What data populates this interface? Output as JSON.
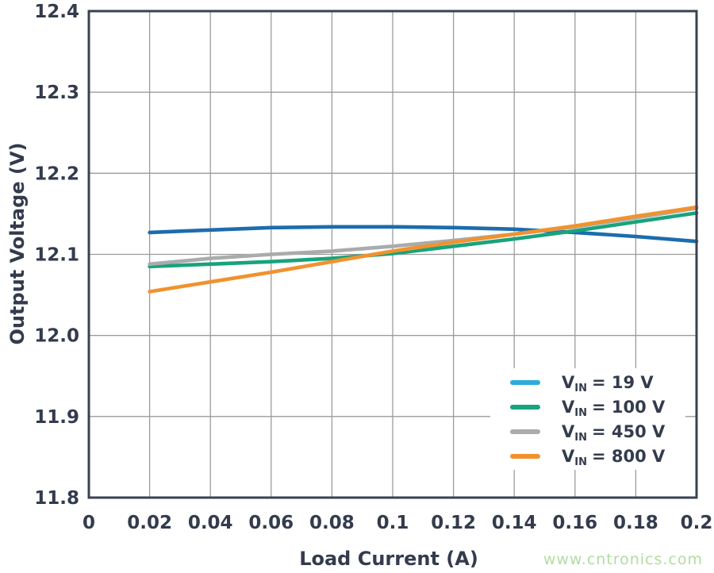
{
  "watermark": {
    "text": "www.cntronics.com"
  },
  "legend": {
    "items": [
      {
        "symbol": "V",
        "subscript": "IN",
        "value": "= 19 V",
        "swatch_color": "#2fabdd"
      },
      {
        "symbol": "V",
        "subscript": "IN",
        "value": "= 100 V",
        "swatch_color": "#18a37c"
      },
      {
        "symbol": "V",
        "subscript": "IN",
        "value": "= 450 V",
        "swatch_color": "#a9abad"
      },
      {
        "symbol": "V",
        "subscript": "IN",
        "value": "= 800 V",
        "swatch_color": "#f1922e"
      }
    ]
  },
  "chart_data": {
    "type": "line",
    "title": "",
    "xlabel": "Load Current (A)",
    "ylabel": "Output Voltage (V)",
    "xlim": [
      0,
      0.2
    ],
    "ylim": [
      11.8,
      12.4
    ],
    "x_ticks": [
      0,
      0.02,
      0.04,
      0.06,
      0.08,
      0.1,
      0.12,
      0.14,
      0.16,
      0.18,
      0.2
    ],
    "x_tick_labels": [
      "0",
      "0.02",
      "0.04",
      "0.06",
      "0.08",
      "0.1",
      "0.12",
      "0.14",
      "0.16",
      "0.18",
      "0.2"
    ],
    "y_ticks": [
      11.8,
      11.9,
      12.0,
      12.1,
      12.2,
      12.3,
      12.4
    ],
    "y_tick_labels": [
      "11.8",
      "11.9",
      "12.0",
      "12.1",
      "12.2",
      "12.3",
      "12.4"
    ],
    "grid": true,
    "grid_color": "#9b9b9b",
    "frame_color": "#3a4150",
    "legend_position": "lower right",
    "x": [
      0.02,
      0.04,
      0.06,
      0.08,
      0.1,
      0.12,
      0.14,
      0.16,
      0.18,
      0.2
    ],
    "series": [
      {
        "name": "VIN = 19 V",
        "color": "#1d6cad",
        "values": [
          12.127,
          12.13,
          12.133,
          12.134,
          12.134,
          12.133,
          12.131,
          12.127,
          12.122,
          12.116
        ]
      },
      {
        "name": "VIN = 100 V",
        "color": "#18a37c",
        "values": [
          12.085,
          12.088,
          12.091,
          12.095,
          12.101,
          12.11,
          12.119,
          12.129,
          12.14,
          12.151
        ]
      },
      {
        "name": "VIN = 450 V",
        "color": "#a9abad",
        "values": [
          12.088,
          12.095,
          12.1,
          12.104,
          12.11,
          12.117,
          12.125,
          12.134,
          12.145,
          12.157
        ]
      },
      {
        "name": "VIN = 800 V",
        "color": "#f1922e",
        "values": [
          12.054,
          12.066,
          12.078,
          12.091,
          12.104,
          12.115,
          12.125,
          12.135,
          12.147,
          12.158
        ]
      }
    ]
  }
}
